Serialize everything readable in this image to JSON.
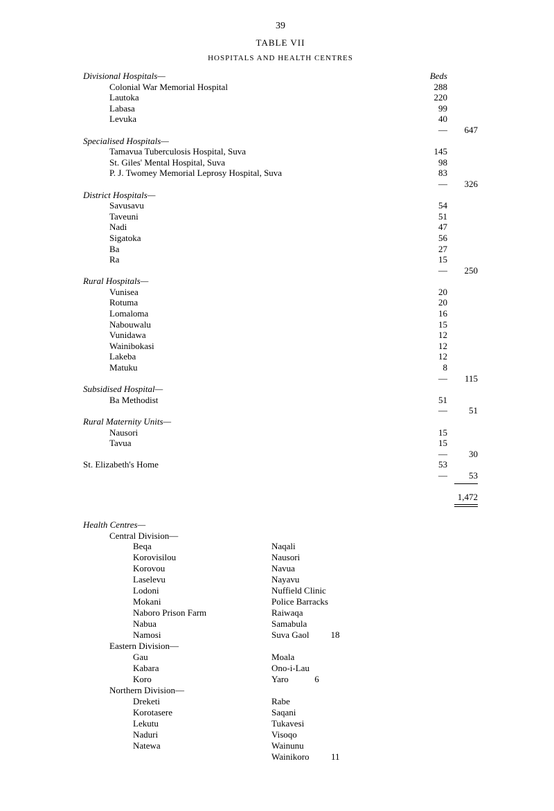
{
  "page_number": "39",
  "table_title": "TABLE VII",
  "subtitle": "HOSPITALS AND HEALTH CENTRES",
  "beds_header": "Beds",
  "groups": [
    {
      "title": "Divisional Hospitals—",
      "rows": [
        {
          "label": "Colonial War Memorial Hospital",
          "beds": "288"
        },
        {
          "label": "Lautoka",
          "beds": "220"
        },
        {
          "label": "Labasa",
          "beds": "99"
        },
        {
          "label": "Levuka",
          "beds": "40"
        }
      ],
      "total": "647"
    },
    {
      "title": "Specialised Hospitals—",
      "rows": [
        {
          "label": "Tamavua Tuberculosis Hospital, Suva",
          "beds": "145"
        },
        {
          "label": "St. Giles' Mental Hospital, Suva",
          "beds": "98"
        },
        {
          "label": "P. J. Twomey Memorial Leprosy Hospital, Suva",
          "beds": "83"
        }
      ],
      "total": "326"
    },
    {
      "title": "District Hospitals—",
      "rows": [
        {
          "label": "Savusavu",
          "beds": "54"
        },
        {
          "label": "Taveuni",
          "beds": "51"
        },
        {
          "label": "Nadi",
          "beds": "47"
        },
        {
          "label": "Sigatoka",
          "beds": "56"
        },
        {
          "label": "Ba",
          "beds": "27"
        },
        {
          "label": "Ra",
          "beds": "15"
        }
      ],
      "total": "250"
    },
    {
      "title": "Rural Hospitals—",
      "rows": [
        {
          "label": "Vunisea",
          "beds": "20"
        },
        {
          "label": "Rotuma",
          "beds": "20"
        },
        {
          "label": "Lomaloma",
          "beds": "16"
        },
        {
          "label": "Nabouwalu",
          "beds": "15"
        },
        {
          "label": "Vunidawa",
          "beds": "12"
        },
        {
          "label": "Wainibokasi",
          "beds": "12"
        },
        {
          "label": "Lakeba",
          "beds": "12"
        },
        {
          "label": "Matuku",
          "beds": "8"
        }
      ],
      "total": "115"
    },
    {
      "title": "Subsidised Hospital—",
      "rows": [
        {
          "label": "Ba Methodist",
          "beds": "51"
        }
      ],
      "total": "51"
    },
    {
      "title": "Rural Maternity Units—",
      "rows": [
        {
          "label": "Nausori",
          "beds": "15"
        },
        {
          "label": "Tavua",
          "beds": "15"
        }
      ],
      "total": "30"
    }
  ],
  "st_elizabeth": {
    "label": "St. Elizabeth's Home",
    "beds": "53",
    "total": "53"
  },
  "grand_total": "1,472",
  "health_centres": {
    "title": "Health Centres—",
    "central": {
      "title": "Central Division—",
      "left": [
        "Beqa",
        "Korovisilou",
        "Korovou",
        "Laselevu",
        "Lodoni",
        "Mokani",
        "Naboro Prison Farm",
        "Nabua",
        "Namosi"
      ],
      "right": [
        "Naqali",
        "Nausori",
        "Navua",
        "Nayavu",
        "Nuffield Clinic",
        "Police Barracks",
        "Raiwaqa",
        "Samabula",
        "Suva Gaol"
      ],
      "total": "18"
    },
    "eastern": {
      "title": "Eastern Division—",
      "left": [
        "Gau",
        "Kabara",
        "Koro"
      ],
      "right": [
        "Moala",
        "Ono-i-Lau",
        "Yaro"
      ],
      "total": "6"
    },
    "northern": {
      "title": "Northern Division—",
      "left": [
        "Dreketi",
        "Korotasere",
        "Lekutu",
        "Naduri",
        "Natewa",
        ""
      ],
      "right": [
        "Rabe",
        "Saqani",
        "Tukavesi",
        "Visoqo",
        "Wainunu",
        "Wainikoro"
      ],
      "total": "11"
    }
  },
  "em_dash": "—"
}
